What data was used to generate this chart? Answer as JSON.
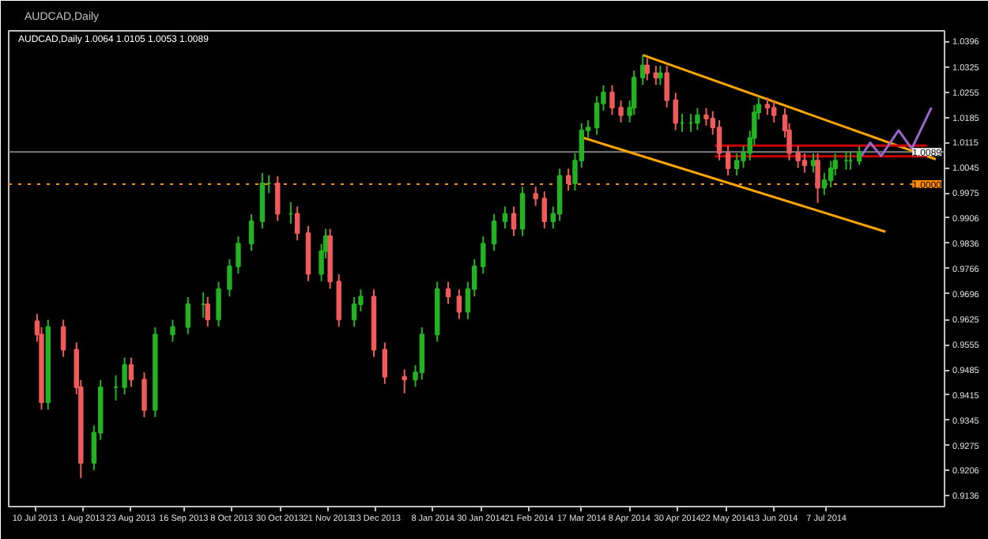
{
  "chart_data": {
    "type": "candlestick",
    "title": "AUDCAD,Daily",
    "subtitle": "1.0064 1.0105 1.0053 1.0089",
    "annotations": [
      "AUDCAD,Daily"
    ],
    "x": [
      "2013-07-11",
      "2013-07-13",
      "2013-07-16",
      "2013-07-23",
      "2013-07-29",
      "2013-07-31",
      "2013-08-06",
      "2013-08-09",
      "2013-08-16",
      "2013-08-20",
      "2013-08-23",
      "2013-08-29",
      "2013-09-03",
      "2013-09-11",
      "2013-09-18",
      "2013-09-25",
      "2013-09-27",
      "2013-10-02",
      "2013-10-07",
      "2013-10-11",
      "2013-10-17",
      "2013-10-22",
      "2013-10-25",
      "2013-10-29",
      "2013-11-04",
      "2013-11-07",
      "2013-11-12",
      "2013-11-18",
      "2013-11-20",
      "2013-11-22",
      "2013-11-26",
      "2013-12-03",
      "2013-12-06",
      "2013-12-12",
      "2013-12-17",
      "2013-12-26",
      "2013-12-31",
      "2014-01-03",
      "2014-01-10",
      "2014-01-15",
      "2014-01-20",
      "2014-01-24",
      "2014-01-27",
      "2014-01-31",
      "2014-02-05",
      "2014-02-10",
      "2014-02-14",
      "2014-02-18",
      "2014-02-24",
      "2014-02-28",
      "2014-03-04",
      "2014-03-07",
      "2014-03-11",
      "2014-03-14",
      "2014-03-17",
      "2014-03-20",
      "2014-03-24",
      "2014-03-27",
      "2014-03-31",
      "2014-04-04",
      "2014-04-08",
      "2014-04-10",
      "2014-04-14",
      "2014-04-16",
      "2014-04-20",
      "2014-04-22",
      "2014-04-25",
      "2014-04-29",
      "2014-05-02",
      "2014-05-06",
      "2014-05-09",
      "2014-05-13",
      "2014-05-16",
      "2014-05-19",
      "2014-05-23",
      "2014-05-27",
      "2014-05-30",
      "2014-06-02",
      "2014-06-04",
      "2014-06-06",
      "2014-06-10",
      "2014-06-13",
      "2014-06-18",
      "2014-06-20",
      "2014-06-24",
      "2014-06-27",
      "2014-07-01",
      "2014-07-03",
      "2014-07-06",
      "2014-07-09",
      "2014-07-11",
      "2014-07-16",
      "2014-07-18",
      "2014-07-22"
    ],
    "ohlc": [
      [
        0.962,
        0.964,
        0.9563,
        0.9583
      ],
      [
        0.9583,
        0.9603,
        0.9375,
        0.9395
      ],
      [
        0.9395,
        0.9624,
        0.9375,
        0.9604
      ],
      [
        0.9604,
        0.9624,
        0.9521,
        0.9541
      ],
      [
        0.9541,
        0.9561,
        0.9417,
        0.9437
      ],
      [
        0.9437,
        0.9457,
        0.9185,
        0.9227
      ],
      [
        0.9227,
        0.9331,
        0.9207,
        0.9311
      ],
      [
        0.9311,
        0.9457,
        0.9291,
        0.9437
      ],
      [
        0.9437,
        0.947,
        0.94,
        0.9437
      ],
      [
        0.9437,
        0.9519,
        0.9417,
        0.9499
      ],
      [
        0.9499,
        0.9519,
        0.9438,
        0.9458
      ],
      [
        0.9458,
        0.9478,
        0.9354,
        0.9374
      ],
      [
        0.9374,
        0.9603,
        0.9354,
        0.9583
      ],
      [
        0.9583,
        0.9624,
        0.9563,
        0.9604
      ],
      [
        0.9604,
        0.9687,
        0.9584,
        0.9667
      ],
      [
        0.9667,
        0.97,
        0.963,
        0.9667
      ],
      [
        0.9667,
        0.9687,
        0.9605,
        0.9625
      ],
      [
        0.9625,
        0.9729,
        0.9605,
        0.9709
      ],
      [
        0.9709,
        0.9792,
        0.9689,
        0.9772
      ],
      [
        0.9772,
        0.9855,
        0.9752,
        0.9835
      ],
      [
        0.9835,
        0.9917,
        0.9815,
        0.9897
      ],
      [
        0.9897,
        1.0031,
        0.9877,
        1.0002
      ],
      [
        1.0002,
        1.0025,
        0.9975,
        1.0002
      ],
      [
        1.0002,
        1.0022,
        0.9898,
        0.9918
      ],
      [
        0.9918,
        0.995,
        0.989,
        0.9918
      ],
      [
        0.9918,
        0.9938,
        0.9844,
        0.9864
      ],
      [
        0.9864,
        0.9884,
        0.9731,
        0.9751
      ],
      [
        0.9751,
        0.9834,
        0.9731,
        0.9814
      ],
      [
        0.9814,
        0.9876,
        0.9794,
        0.9856
      ],
      [
        0.9856,
        0.9876,
        0.971,
        0.973
      ],
      [
        0.973,
        0.975,
        0.9605,
        0.9625
      ],
      [
        0.9625,
        0.9687,
        0.9605,
        0.9667
      ],
      [
        0.9667,
        0.9708,
        0.9647,
        0.9688
      ],
      [
        0.9688,
        0.9708,
        0.9521,
        0.9541
      ],
      [
        0.9541,
        0.9561,
        0.9446,
        0.9466
      ],
      [
        0.9466,
        0.9486,
        0.942,
        0.9458
      ],
      [
        0.9458,
        0.9498,
        0.9438,
        0.9478
      ],
      [
        0.9478,
        0.9603,
        0.9458,
        0.9583
      ],
      [
        0.9583,
        0.9729,
        0.9563,
        0.9709
      ],
      [
        0.9709,
        0.9729,
        0.9668,
        0.9688
      ],
      [
        0.9688,
        0.9708,
        0.9626,
        0.9646
      ],
      [
        0.9646,
        0.9729,
        0.9626,
        0.9709
      ],
      [
        0.9709,
        0.9792,
        0.9689,
        0.9772
      ],
      [
        0.9772,
        0.9855,
        0.9752,
        0.9835
      ],
      [
        0.9835,
        0.9917,
        0.9815,
        0.9897
      ],
      [
        0.9897,
        0.9938,
        0.9877,
        0.9918
      ],
      [
        0.9918,
        0.9938,
        0.9856,
        0.9876
      ],
      [
        0.9876,
        0.9993,
        0.9856,
        0.9973
      ],
      [
        0.9973,
        0.9993,
        0.994,
        0.996
      ],
      [
        0.996,
        0.998,
        0.9877,
        0.9897
      ],
      [
        0.9897,
        0.9938,
        0.9877,
        0.9918
      ],
      [
        0.9918,
        1.0043,
        0.9898,
        1.0023
      ],
      [
        1.0023,
        1.0043,
        0.9982,
        1.0002
      ],
      [
        1.0002,
        1.0085,
        0.9982,
        1.0065
      ],
      [
        1.0065,
        1.0169,
        1.0045,
        1.0149
      ],
      [
        1.0149,
        1.0177,
        1.0129,
        1.0157
      ],
      [
        1.0157,
        1.0244,
        1.0137,
        1.0224
      ],
      [
        1.0224,
        1.0274,
        1.0204,
        1.0254
      ],
      [
        1.0254,
        1.0274,
        1.0192,
        1.0212
      ],
      [
        1.0212,
        1.0232,
        1.0171,
        1.0191
      ],
      [
        1.0191,
        1.0232,
        1.0171,
        1.0212
      ],
      [
        1.0212,
        1.0315,
        1.0192,
        1.0295
      ],
      [
        1.0295,
        1.0358,
        1.0275,
        1.0329
      ],
      [
        1.0329,
        1.0349,
        1.0288,
        1.0308
      ],
      [
        1.0308,
        1.0328,
        1.0275,
        1.0295
      ],
      [
        1.0295,
        1.0328,
        1.0275,
        1.0308
      ],
      [
        1.0308,
        1.0328,
        1.0213,
        1.0233
      ],
      [
        1.0233,
        1.0253,
        1.015,
        1.017
      ],
      [
        1.017,
        1.0195,
        1.0145,
        1.017
      ],
      [
        1.017,
        1.0195,
        1.0145,
        1.017
      ],
      [
        1.017,
        1.0211,
        1.015,
        1.0191
      ],
      [
        1.0191,
        1.0211,
        1.0162,
        1.0182
      ],
      [
        1.0182,
        1.0202,
        1.0137,
        1.0157
      ],
      [
        1.0157,
        1.0177,
        1.0066,
        1.0086
      ],
      [
        1.0086,
        1.0106,
        1.0024,
        1.0044
      ],
      [
        1.0044,
        1.0085,
        1.0024,
        1.0065
      ],
      [
        1.0065,
        1.0106,
        1.0045,
        1.0086
      ],
      [
        1.0086,
        1.0148,
        1.0066,
        1.0128
      ],
      [
        1.0128,
        1.0219,
        1.0108,
        1.0199
      ],
      [
        1.0199,
        1.024,
        1.0179,
        1.022
      ],
      [
        1.022,
        1.024,
        1.0192,
        1.0212
      ],
      [
        1.0212,
        1.0232,
        1.0171,
        1.0191
      ],
      [
        1.0191,
        1.0211,
        1.0129,
        1.0149
      ],
      [
        1.0149,
        1.0169,
        1.0066,
        1.0086
      ],
      [
        1.0086,
        1.0106,
        1.0045,
        1.0065
      ],
      [
        1.0065,
        1.0085,
        1.0032,
        1.0052
      ],
      [
        1.0052,
        1.0085,
        1.0032,
        1.0065
      ],
      [
        1.0065,
        1.0085,
        0.9948,
        0.999
      ],
      [
        0.999,
        1.0031,
        0.997,
        1.0011
      ],
      [
        1.0011,
        1.0064,
        0.9991,
        1.0044
      ],
      [
        1.0044,
        1.0085,
        1.0024,
        1.0065
      ],
      [
        1.0065,
        1.009,
        1.004,
        1.0065
      ],
      [
        1.0065,
        1.009,
        1.004,
        1.0065
      ],
      [
        1.0064,
        1.0105,
        1.0053,
        1.0089
      ]
    ],
    "series": [
      {
        "type": "line",
        "color": "#ffa500",
        "x": [
          "2014-04-14",
          "2014-08-26"
        ],
        "values": [
          1.0358,
          1.0069
        ]
      },
      {
        "type": "line",
        "color": "#ffa500",
        "x": [
          "2014-03-18",
          "2014-08-03"
        ],
        "values": [
          1.0128,
          0.9868
        ]
      },
      {
        "type": "line",
        "color": "#cc0000",
        "x": [
          "2014-05-17",
          "2014-08-22"
        ],
        "values": [
          1.0107,
          1.0107
        ]
      },
      {
        "type": "line",
        "color": "#cc0000",
        "x": [
          "2014-05-17",
          "2014-08-22"
        ],
        "values": [
          1.0077,
          1.0077
        ]
      },
      {
        "type": "line",
        "color": "#9966cc",
        "x": [
          "2014-07-23",
          "2014-07-27",
          "2014-08-01",
          "2014-08-09",
          "2014-08-15",
          "2014-08-24"
        ],
        "values": [
          1.0078,
          1.0115,
          1.0078,
          1.0149,
          1.0098,
          1.0212
        ]
      }
    ],
    "ref_lines": [
      {
        "axis": "y",
        "value": 1.0089,
        "label": "1.0089",
        "color": "#808080",
        "line_style": "solid"
      },
      {
        "axis": "y",
        "value": 1.0,
        "label": "1.0000",
        "color": "#ff8c00",
        "line_style": "dotted"
      }
    ],
    "xlim": [
      "2013-06-28",
      "2014-08-30"
    ],
    "xticks": [
      {
        "value": "2013-07-10",
        "label": "10 Jul 2013"
      },
      {
        "value": "2013-08-01",
        "label": "1 Aug 2013"
      },
      {
        "value": "2013-08-23",
        "label": "23 Aug 2013"
      },
      {
        "value": "2013-09-16",
        "label": "16 Sep 2013"
      },
      {
        "value": "2013-10-08",
        "label": "8 Oct 2013"
      },
      {
        "value": "2013-10-30",
        "label": "30 Oct 2013"
      },
      {
        "value": "2013-11-21",
        "label": "21 Nov 2013"
      },
      {
        "value": "2013-12-13",
        "label": "13 Dec 2013"
      },
      {
        "value": "2014-01-08",
        "label": "8 Jan 2014"
      },
      {
        "value": "2014-01-30",
        "label": "30 Jan 2014"
      },
      {
        "value": "2014-02-21",
        "label": "21 Feb 2014"
      },
      {
        "value": "2014-03-17",
        "label": "17 Mar 2014"
      },
      {
        "value": "2014-04-08",
        "label": "8 Apr 2014"
      },
      {
        "value": "2014-04-30",
        "label": "30 Apr 2014"
      },
      {
        "value": "2014-05-22",
        "label": "22 May 2014"
      },
      {
        "value": "2014-06-13",
        "label": "13 Jun 2014"
      },
      {
        "value": "2014-07-07",
        "label": "7 Jul 2014"
      }
    ],
    "ylim": [
      0.9106,
      1.0425
    ],
    "yticks": [
      1.0396,
      1.0325,
      1.0255,
      1.0185,
      1.0115,
      1.0045,
      0.9975,
      0.9906,
      0.9836,
      0.9766,
      0.9696,
      0.9625,
      0.9555,
      0.9485,
      0.9415,
      0.9345,
      0.9275,
      0.9206,
      0.9136
    ],
    "grid": false,
    "marker": "none"
  }
}
